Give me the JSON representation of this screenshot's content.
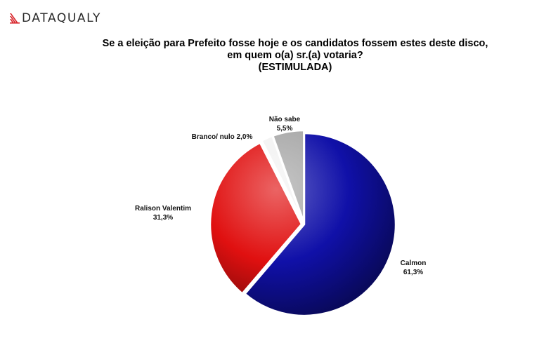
{
  "header": {
    "logo_text": "DATAQUALY"
  },
  "chart_data": {
    "type": "pie",
    "title_lines": [
      "Se a eleição para Prefeito fosse hoje e os candidatos fossem estes deste disco,",
      "em quem o(a) sr.(a) votaria?",
      "(ESTIMULADA)"
    ],
    "slices": [
      {
        "name": "Calmon",
        "label": "61,3%",
        "value": 61.3,
        "color": "#1010a8",
        "exploded": false
      },
      {
        "name": "Ralison Valentim",
        "label": "31,3%",
        "value": 31.3,
        "color": "#e01010",
        "exploded": true
      },
      {
        "name": "Branco/ nulo",
        "label": "2,0%",
        "value": 2.0,
        "color": "#f2f2f2",
        "exploded": true
      },
      {
        "name": "Não sabe",
        "label": "5,5%",
        "value": 5.5,
        "color": "#a8a8a8",
        "exploded": true
      }
    ]
  }
}
